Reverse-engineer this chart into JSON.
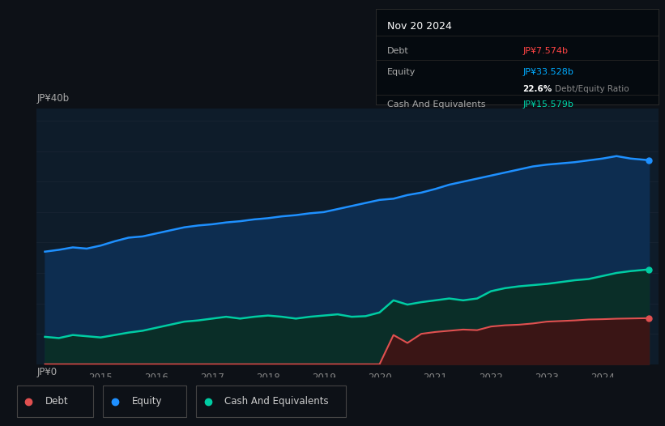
{
  "bg_color": "#0d1117",
  "plot_bg_color": "#0e1c2a",
  "title_box": {
    "date": "Nov 20 2024",
    "debt_label": "Debt",
    "debt_value": "JP¥7.574b",
    "debt_color": "#ff4444",
    "equity_label": "Equity",
    "equity_value": "JP¥33.528b",
    "equity_color": "#00aaff",
    "ratio_bold": "22.6%",
    "ratio_text": "Debt/Equity Ratio",
    "cash_label": "Cash And Equivalents",
    "cash_value": "JP¥15.579b",
    "cash_color": "#00d4aa",
    "box_bg": "#050a0f",
    "box_border": "#2a2a2a",
    "text_color": "#aaaaaa",
    "ratio_text_color": "#888888"
  },
  "ylabel_top": "JP¥40b",
  "ylabel_bottom": "JP¥0",
  "grid_color": "#1a2535",
  "years": [
    2014.0,
    2014.25,
    2014.5,
    2014.75,
    2015.0,
    2015.25,
    2015.5,
    2015.75,
    2016.0,
    2016.25,
    2016.5,
    2016.75,
    2017.0,
    2017.25,
    2017.5,
    2017.75,
    2018.0,
    2018.25,
    2018.5,
    2018.75,
    2019.0,
    2019.25,
    2019.5,
    2019.75,
    2020.0,
    2020.25,
    2020.5,
    2020.75,
    2021.0,
    2021.25,
    2021.5,
    2021.75,
    2022.0,
    2022.25,
    2022.5,
    2022.75,
    2023.0,
    2023.25,
    2023.5,
    2023.75,
    2024.0,
    2024.25,
    2024.5,
    2024.83
  ],
  "equity": [
    18.5,
    18.8,
    19.2,
    19.0,
    19.5,
    20.2,
    20.8,
    21.0,
    21.5,
    22.0,
    22.5,
    22.8,
    23.0,
    23.3,
    23.5,
    23.8,
    24.0,
    24.3,
    24.5,
    24.8,
    25.0,
    25.5,
    26.0,
    26.5,
    27.0,
    27.2,
    27.8,
    28.2,
    28.8,
    29.5,
    30.0,
    30.5,
    31.0,
    31.5,
    32.0,
    32.5,
    32.8,
    33.0,
    33.2,
    33.5,
    33.8,
    34.2,
    33.8,
    33.528
  ],
  "debt": [
    0.0,
    0.0,
    0.0,
    0.0,
    0.0,
    0.0,
    0.0,
    0.0,
    0.0,
    0.0,
    0.0,
    0.0,
    0.0,
    0.0,
    0.0,
    0.0,
    0.0,
    0.0,
    0.0,
    0.0,
    0.0,
    0.0,
    0.0,
    0.0,
    0.0,
    4.8,
    3.5,
    5.0,
    5.3,
    5.5,
    5.7,
    5.6,
    6.2,
    6.4,
    6.5,
    6.7,
    7.0,
    7.1,
    7.2,
    7.35,
    7.4,
    7.48,
    7.52,
    7.574
  ],
  "cash": [
    4.5,
    4.3,
    4.8,
    4.6,
    4.4,
    4.8,
    5.2,
    5.5,
    6.0,
    6.5,
    7.0,
    7.2,
    7.5,
    7.8,
    7.5,
    7.8,
    8.0,
    7.8,
    7.5,
    7.8,
    8.0,
    8.2,
    7.8,
    7.9,
    8.5,
    10.5,
    9.8,
    10.2,
    10.5,
    10.8,
    10.5,
    10.8,
    12.0,
    12.5,
    12.8,
    13.0,
    13.2,
    13.5,
    13.8,
    14.0,
    14.5,
    15.0,
    15.3,
    15.579
  ],
  "equity_color": "#1e90ff",
  "equity_fill": "#0d2d50",
  "debt_color": "#e05050",
  "debt_fill": "#3a1515",
  "cash_color": "#00cca3",
  "cash_fill": "#0a2e28",
  "tick_years": [
    2015,
    2016,
    2017,
    2018,
    2019,
    2020,
    2021,
    2022,
    2023,
    2024
  ],
  "ylim": [
    0,
    42
  ],
  "xlim_start": 2013.85,
  "xlim_end": 2025.0,
  "legend_labels": [
    "Debt",
    "Equity",
    "Cash And Equivalents"
  ],
  "legend_colors": [
    "#e05050",
    "#1e90ff",
    "#00cca3"
  ]
}
